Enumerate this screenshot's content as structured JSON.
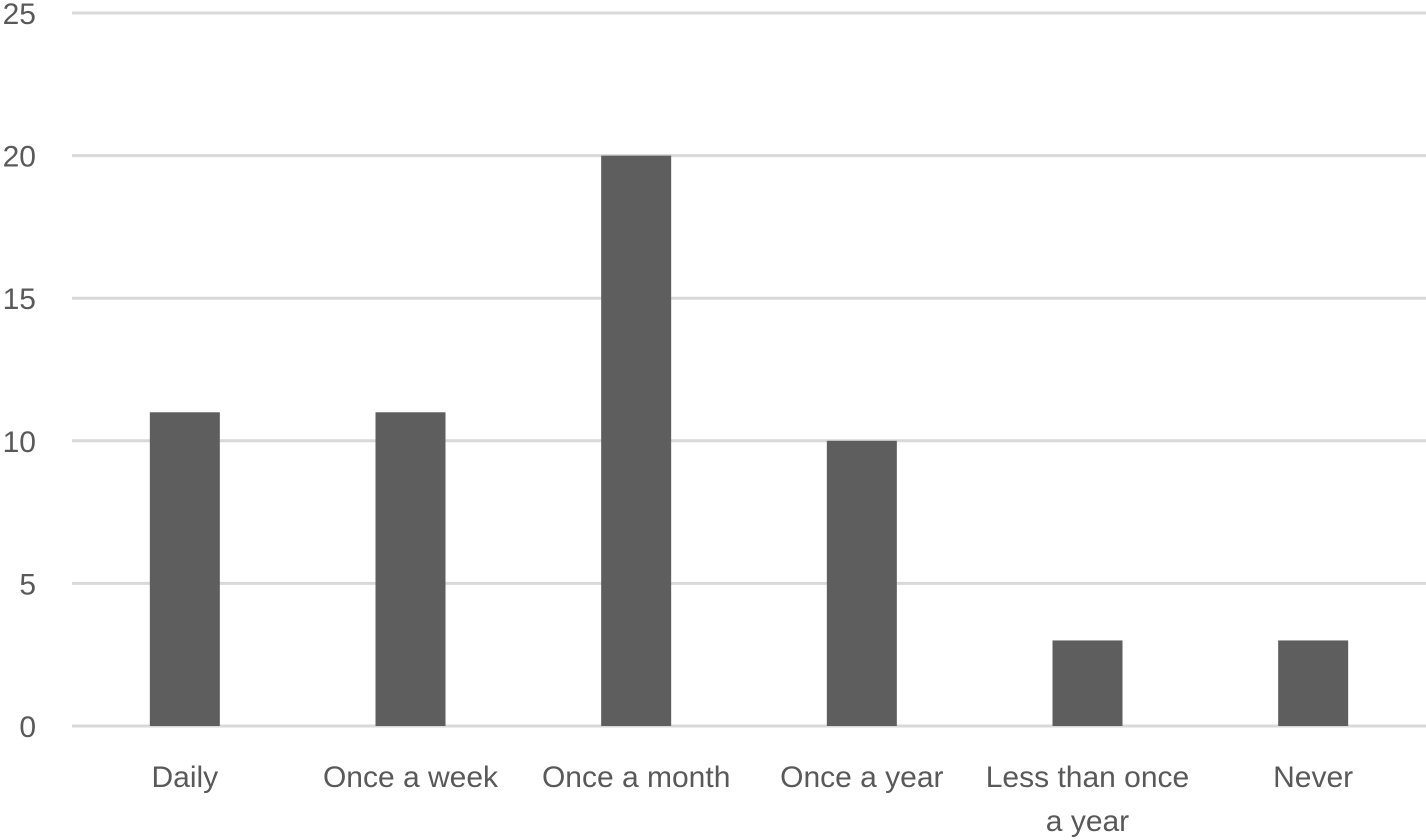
{
  "chart_data": {
    "type": "bar",
    "categories": [
      "Daily",
      "Once a week",
      "Once a month",
      "Once a year",
      "Less than once a year",
      "Never"
    ],
    "category_lines": [
      [
        "Daily"
      ],
      [
        "Once a week"
      ],
      [
        "Once a month"
      ],
      [
        "Once a year"
      ],
      [
        "Less than once",
        "a year"
      ],
      [
        "Never"
      ]
    ],
    "values": [
      11,
      11,
      20,
      10,
      3,
      3
    ],
    "yticks": [
      0,
      5,
      10,
      15,
      20,
      25
    ],
    "ylim": [
      0,
      25
    ],
    "title": "",
    "xlabel": "",
    "ylabel": "",
    "grid": true,
    "legend": "none",
    "colors": {
      "bar": "#5e5e5e",
      "grid": "#d9d9d9",
      "text": "#595959"
    }
  }
}
